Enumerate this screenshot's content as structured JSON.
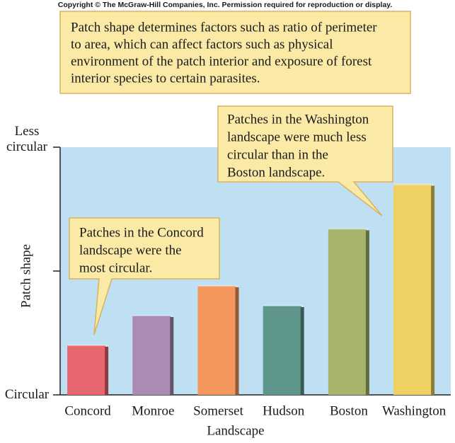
{
  "copyright": "Copyright © The McGraw-Hill Companies, Inc. Permission required for reproduction or display.",
  "chart_data": {
    "type": "bar",
    "caption": [
      "Patch shape determines factors such as ratio of perimeter",
      "to area, which can affect factors such as physical",
      "environment of the patch interior and exposure of forest",
      "interior species to certain parasites."
    ],
    "annotations": [
      {
        "lines": [
          "Patches in the Washington",
          "landscape were much less",
          "circular than in the",
          "Boston landscape."
        ]
      },
      {
        "lines": [
          "Patches in the Concord",
          "landscape were the",
          "most circular."
        ]
      }
    ],
    "y_label": "Patch shape",
    "x_label": "Landscape",
    "categories": [
      "Concord",
      "Monroe",
      "Somerset",
      "Hudson",
      "Boston",
      "Washington"
    ],
    "values": [
      20,
      32,
      44,
      36,
      67,
      85
    ],
    "colors": [
      "#e8676e",
      "#a98bb3",
      "#f4975c",
      "#5f968c",
      "#a6b56b",
      "#efd063"
    ],
    "ylim": [
      0,
      100
    ],
    "yticks": [
      {
        "value": 0,
        "label": "Circular"
      },
      {
        "value": 50,
        "label": null
      },
      {
        "value": 100,
        "label": "Less circular"
      }
    ],
    "background": "#bfe0f3"
  }
}
